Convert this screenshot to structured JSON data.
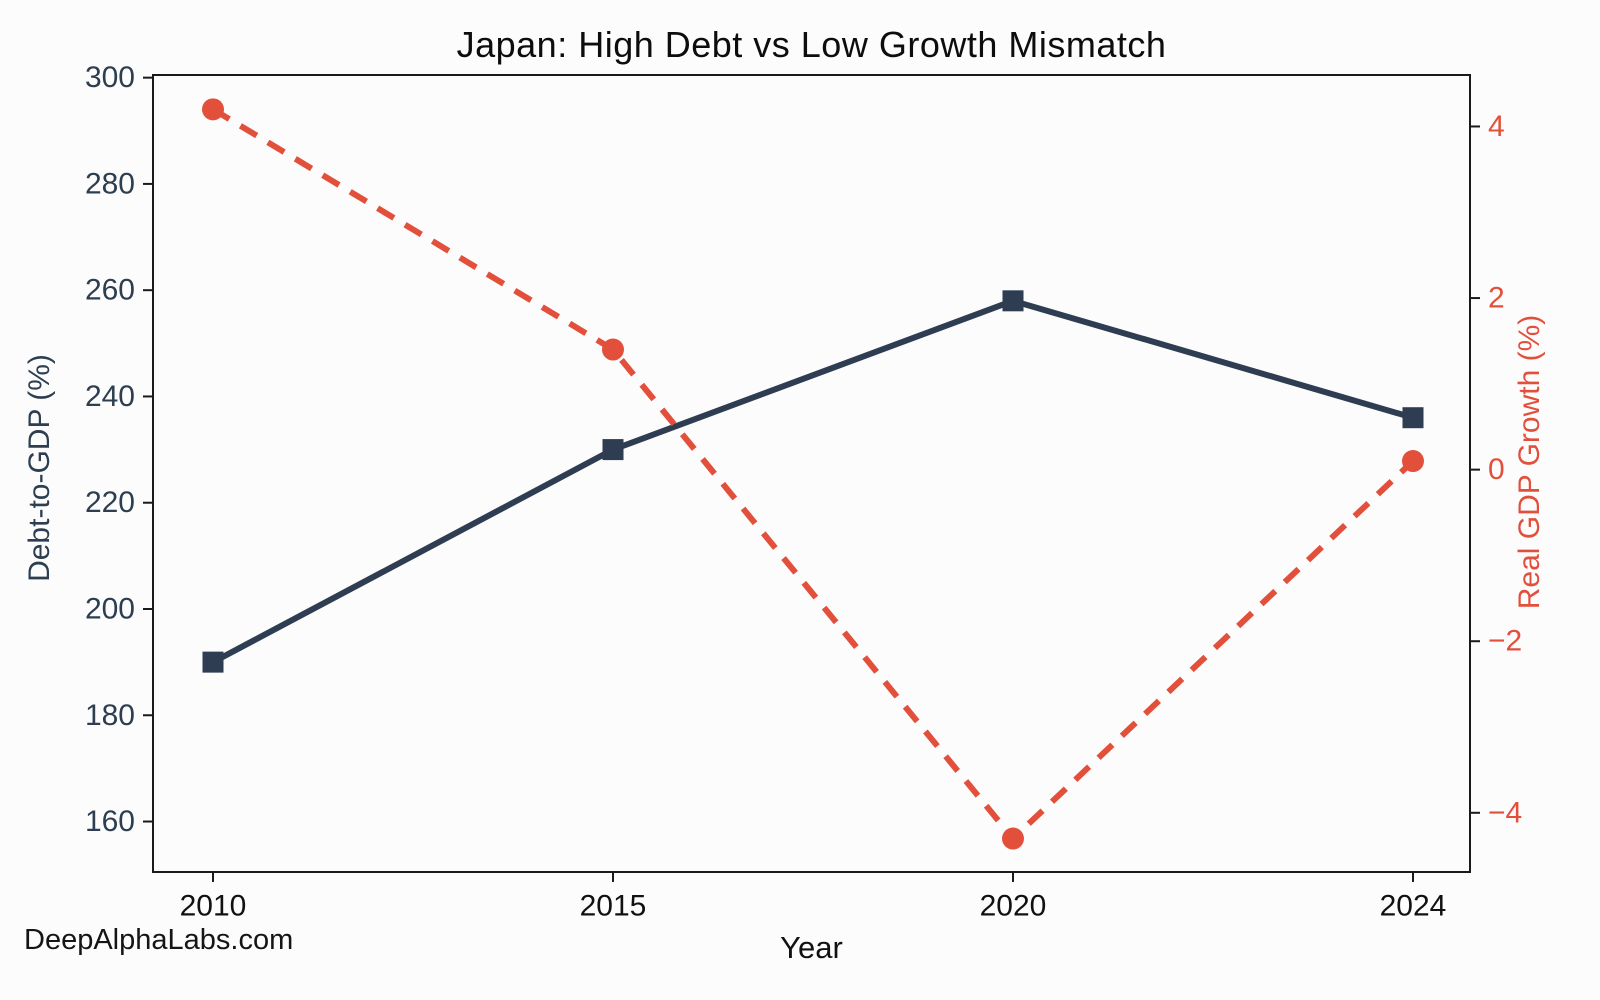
{
  "page": {
    "watermark": "DeepAlphaLabs.com"
  },
  "chart_data": {
    "type": "line",
    "title": "Japan: High Debt vs Low Growth Mismatch",
    "xlabel": "Year",
    "categories": [
      "2010",
      "2015",
      "2020",
      "2024"
    ],
    "series": [
      {
        "name": "Debt-to-GDP (%)",
        "axis": "left",
        "values": [
          190,
          230,
          258,
          236
        ],
        "color": "#2e3d52",
        "line_style": "solid",
        "marker": "square"
      },
      {
        "name": "Real GDP Growth (%)",
        "axis": "right",
        "values": [
          4.2,
          1.4,
          -4.3,
          0.1
        ],
        "color": "#e2503c",
        "line_style": "dashed",
        "marker": "circle"
      }
    ],
    "axes": {
      "left": {
        "label": "Debt-to-GDP (%)",
        "tick_color": "#2d3e50",
        "ticks": [
          300,
          280,
          260,
          240,
          220,
          200,
          180,
          160
        ],
        "tick_labels": [
          "300",
          "280",
          "260",
          "240",
          "220",
          "200",
          "180",
          "160"
        ],
        "range": [
          150.5,
          300.5
        ]
      },
      "right": {
        "label": "Real GDP Growth (%)",
        "tick_color": "#e2503c",
        "ticks": [
          4,
          2,
          0,
          -2,
          -4
        ],
        "tick_labels": [
          "4",
          "2",
          "0",
          "−2",
          "−4"
        ],
        "range": [
          -4.69,
          4.6
        ]
      },
      "x": {
        "label": "Year",
        "tick_labels": [
          "2010",
          "2015",
          "2020",
          "2024"
        ]
      }
    },
    "grid": false,
    "legend": "none",
    "spine_color": "#1a1a1a"
  }
}
